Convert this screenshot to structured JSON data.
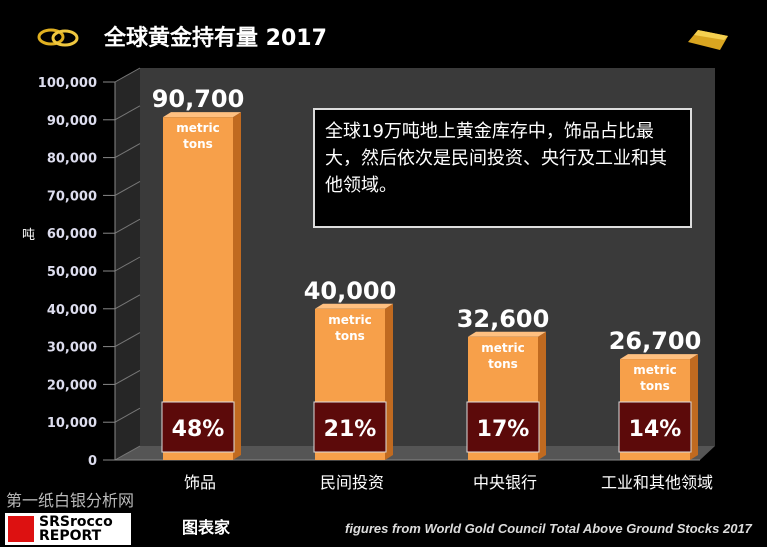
{
  "header": {
    "title": "全球黄金持有量 2017",
    "icons": [
      "gold-rings-icon",
      "gold-bar-icon"
    ]
  },
  "note": "全球19万吨地上黄金库存中，饰品占比最大，然后依次是民间投资、央行及工业和其他领域。",
  "footer": {
    "source": "figures from World Gold Council Total Above Ground Stocks 2017",
    "watermark": "第一纸白银分析网",
    "logo1": "SRSrocco REPORT",
    "logo2": "图表家"
  },
  "colors": {
    "bar": "#f7a04a",
    "pct_box": "#5c0a0a",
    "background": "#000000"
  },
  "chart_data": {
    "type": "bar",
    "title": "全球黄金持有量 2017",
    "ylabel": "吨",
    "ylim": [
      0,
      100000
    ],
    "yticks": [
      "0",
      "10,000",
      "20,000",
      "30,000",
      "40,000",
      "50,000",
      "60,000",
      "70,000",
      "80,000",
      "90,000",
      "100,000"
    ],
    "categories": [
      "饰品",
      "民间投资",
      "中央银行",
      "工业和其他领域"
    ],
    "values": [
      90700,
      40000,
      32600,
      26700
    ],
    "value_labels": [
      "90,700",
      "40,000",
      "32,600",
      "26,700"
    ],
    "unit_label": [
      "metric",
      "tons"
    ],
    "percent_labels": [
      "48%",
      "21%",
      "17%",
      "14%"
    ],
    "grid": false
  }
}
